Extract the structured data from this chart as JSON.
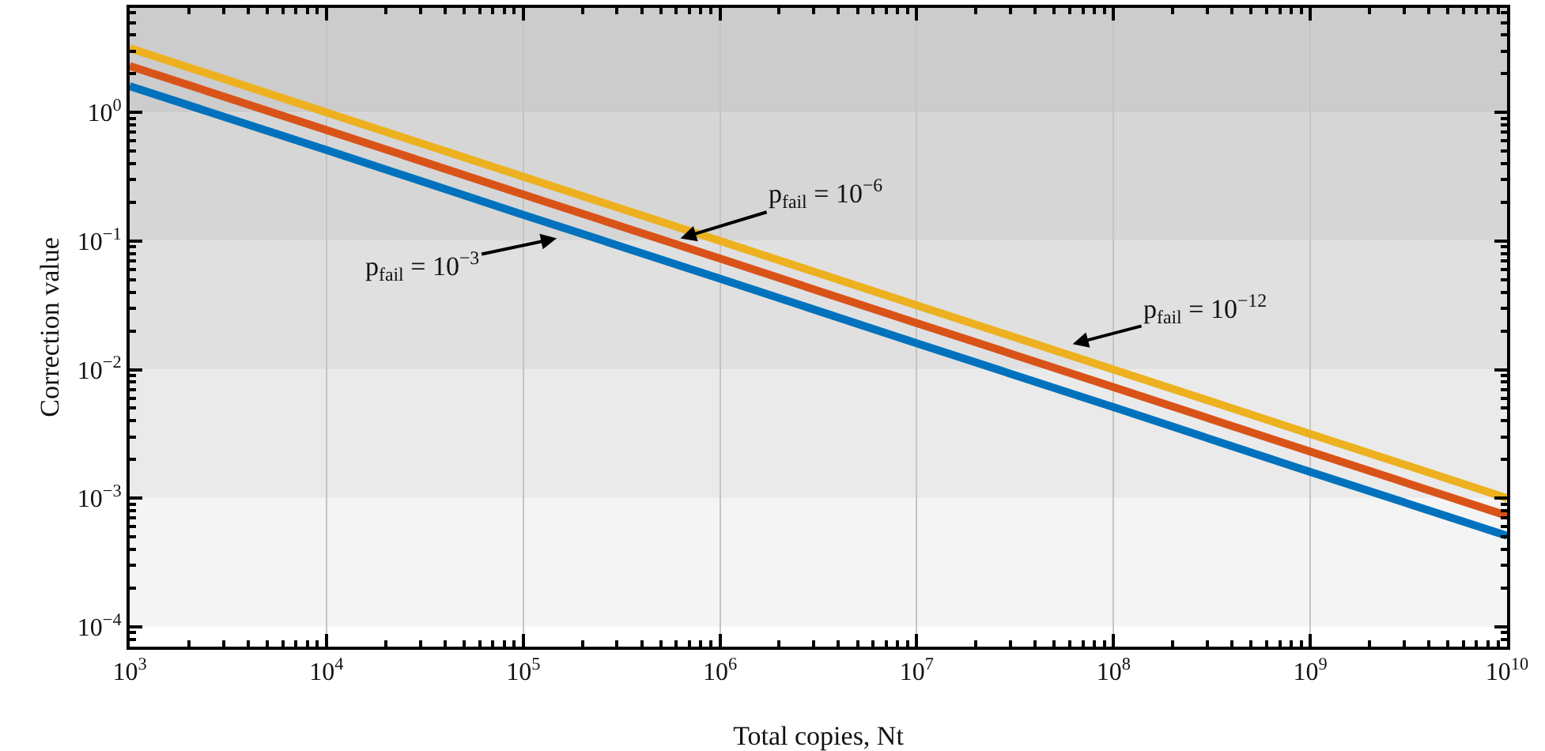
{
  "chart_data": {
    "type": "line",
    "xlabel": "Total copies, Nt",
    "ylabel": "Correction value",
    "x": [
      1000,
      10000,
      100000,
      1000000,
      10000000,
      100000000,
      1000000000,
      10000000000
    ],
    "series": [
      {
        "color": "#edb120",
        "values": [
          3.16,
          1,
          0.316,
          0.1,
          0.0316,
          0.01,
          0.00316,
          0.001
        ]
      },
      {
        "color": "#d95319",
        "values": [
          2.3,
          0.73,
          0.23,
          0.073,
          0.023,
          0.0073,
          0.0023,
          0.00073
        ]
      },
      {
        "color": "#0072bd",
        "values": [
          1.6,
          0.51,
          0.16,
          0.051,
          0.016,
          0.0051,
          0.0016,
          0.00051
        ]
      }
    ],
    "log": "xy",
    "xlim": [
      1000,
      10000000000
    ],
    "ylim": [
      7e-05,
      6.5
    ],
    "xticks": [
      {
        "value": 1000,
        "label": "10$^{3}$"
      },
      {
        "value": 10000,
        "label": "10$^{4}$"
      },
      {
        "value": 100000,
        "label": "10$^{5}$"
      },
      {
        "value": 1000000,
        "label": "10$^{6}$"
      },
      {
        "value": 10000000,
        "label": "10$^{7}$"
      },
      {
        "value": 100000000,
        "label": "10$^{8}$"
      },
      {
        "value": 1000000000,
        "label": "10$^{9}$"
      },
      {
        "value": 10000000000,
        "label": "10$^{10}$"
      }
    ],
    "yticks": [
      {
        "value": 0.0001,
        "label": "10$^{−4}$"
      },
      {
        "value": 0.001,
        "label": "10$^{−3}$"
      },
      {
        "value": 0.01,
        "label": "10$^{−2}$"
      },
      {
        "value": 0.1,
        "label": "10$^{−1}$"
      },
      {
        "value": 1,
        "label": "10$^{0}$"
      }
    ],
    "grid": "x",
    "marker": "none",
    "line_style": "solid",
    "bands": [
      {
        "axis": "y",
        "from": 1,
        "to": 6.5,
        "color": "#cccccc"
      },
      {
        "axis": "y",
        "from": 0.1,
        "to": 1,
        "color": "#d6d6d6"
      },
      {
        "axis": "y",
        "from": 0.01,
        "to": 0.1,
        "color": "#e0e0e0"
      },
      {
        "axis": "y",
        "from": 0.001,
        "to": 0.01,
        "color": "#eaeaea"
      },
      {
        "axis": "y",
        "from": 0.0001,
        "to": 0.001,
        "color": "#f4f4f4"
      }
    ],
    "annotations": [
      {
        "text": "p$_{fail}$ = 10$^{−3}$",
        "x": 148000,
        "y": 0.105
      },
      {
        "text": "p$_{fail}$ = 10$^{−6}$",
        "x": 630000,
        "y": 0.105
      },
      {
        "text": "p$_{fail}$ = 10$^{−12}$",
        "x": 62000000,
        "y": 0.0158
      }
    ]
  }
}
